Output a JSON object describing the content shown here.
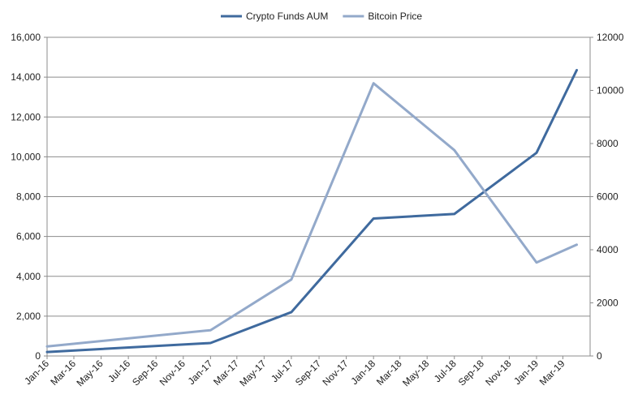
{
  "colors": {
    "grid": "#8c8c8c",
    "axis": "#8c8c8c",
    "text": "#222222"
  },
  "chart_data": {
    "type": "line",
    "title": "",
    "xlabel": "",
    "ylabel": "",
    "y2label": "",
    "x_ticks": [
      "Jan-16",
      "Mar-16",
      "May-16",
      "Jul-16",
      "Sep-16",
      "Nov-16",
      "Jan-17",
      "Mar-17",
      "May-17",
      "Jul-17",
      "Sep-17",
      "Nov-17",
      "Jan-18",
      "Mar-18",
      "May-18",
      "Jul-18",
      "Sep-18",
      "Nov-18",
      "Jan-19",
      "Mar-19"
    ],
    "x_range": [
      "2016-01-01",
      "2019-05-01"
    ],
    "ylim": [
      0,
      16000
    ],
    "y_ticks": [
      "0",
      "2,000",
      "4,000",
      "6,000",
      "8,000",
      "10,000",
      "12,000",
      "14,000",
      "16,000"
    ],
    "y2lim": [
      0,
      12000
    ],
    "y2_ticks": [
      "0",
      "2000",
      "4000",
      "6000",
      "8000",
      "10000",
      "12000"
    ],
    "grid": true,
    "legend_position": "top",
    "series": [
      {
        "name": "Crypto Funds AUM",
        "axis": "left",
        "color": "#3f6a9e",
        "points": [
          {
            "date": "2016-01-01",
            "value": 200
          },
          {
            "date": "2017-01-01",
            "value": 650
          },
          {
            "date": "2017-07-01",
            "value": 2200
          },
          {
            "date": "2018-01-01",
            "value": 6900
          },
          {
            "date": "2018-07-01",
            "value": 7130
          },
          {
            "date": "2019-01-01",
            "value": 10200
          },
          {
            "date": "2019-04-01",
            "value": 14350
          }
        ]
      },
      {
        "name": "Bitcoin Price",
        "axis": "right",
        "color": "#93a9ca",
        "points": [
          {
            "date": "2016-01-01",
            "value": 360
          },
          {
            "date": "2017-01-01",
            "value": 970
          },
          {
            "date": "2017-07-01",
            "value": 2880
          },
          {
            "date": "2018-01-01",
            "value": 10270
          },
          {
            "date": "2018-07-01",
            "value": 7750
          },
          {
            "date": "2019-01-01",
            "value": 3520
          },
          {
            "date": "2019-04-01",
            "value": 4190
          }
        ]
      }
    ]
  }
}
